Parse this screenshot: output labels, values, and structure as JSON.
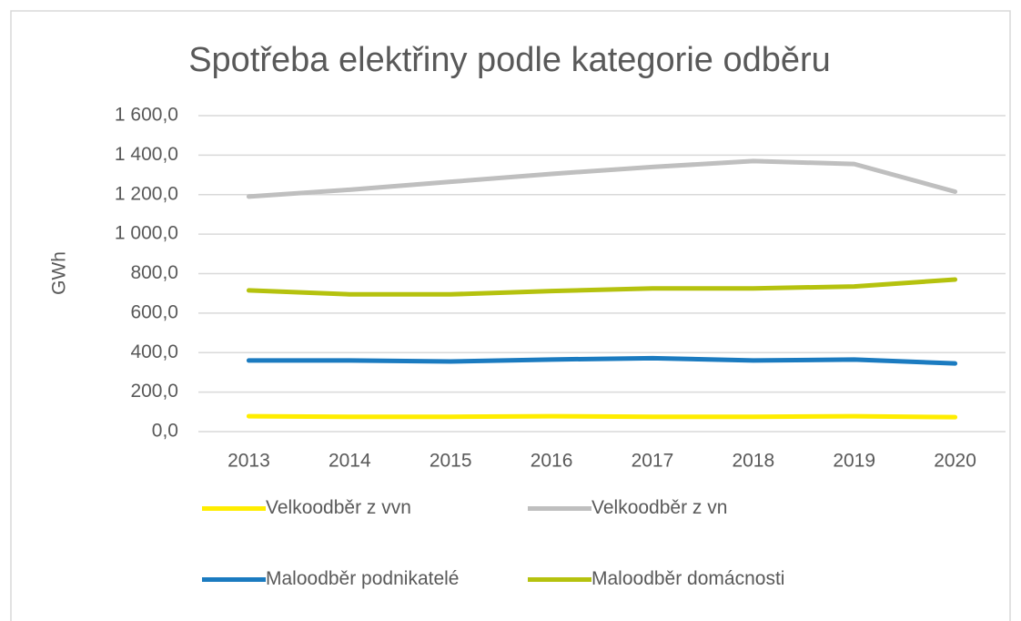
{
  "chart_data": {
    "type": "line",
    "title": "Spotřeba elektřiny podle kategorie odběru",
    "y_label": "GWh",
    "categories": [
      "2013",
      "2014",
      "2015",
      "2016",
      "2017",
      "2018",
      "2019",
      "2020"
    ],
    "series": [
      {
        "name": "Velkoodběr z vvn",
        "color": "#ffed00",
        "values": [
          78,
          75,
          75,
          78,
          75,
          75,
          78,
          73
        ]
      },
      {
        "name": "Velkoodběr z vn",
        "color": "#bfbfbf",
        "values": [
          1190,
          1225,
          1265,
          1305,
          1340,
          1370,
          1355,
          1215
        ]
      },
      {
        "name": "Maloodběr podnikatelé",
        "color": "#1b7bc0",
        "values": [
          360,
          360,
          355,
          365,
          372,
          360,
          365,
          345
        ]
      },
      {
        "name": "Maloodběr domácnosti",
        "color": "#b5c20e",
        "values": [
          715,
          695,
          695,
          712,
          725,
          725,
          735,
          770
        ]
      }
    ],
    "ylim": [
      0,
      1600
    ],
    "yticks": [
      {
        "value": 0,
        "label": "0,0"
      },
      {
        "value": 200,
        "label": "200,0"
      },
      {
        "value": 400,
        "label": "400,0"
      },
      {
        "value": 600,
        "label": "600,0"
      },
      {
        "value": 800,
        "label": "800,0"
      },
      {
        "value": 1000,
        "label": "1 000,0"
      },
      {
        "value": 1200,
        "label": "1 200,0"
      },
      {
        "value": 1400,
        "label": "1 400,0"
      },
      {
        "value": 1600,
        "label": "1 600,0"
      }
    ],
    "grid": true
  }
}
